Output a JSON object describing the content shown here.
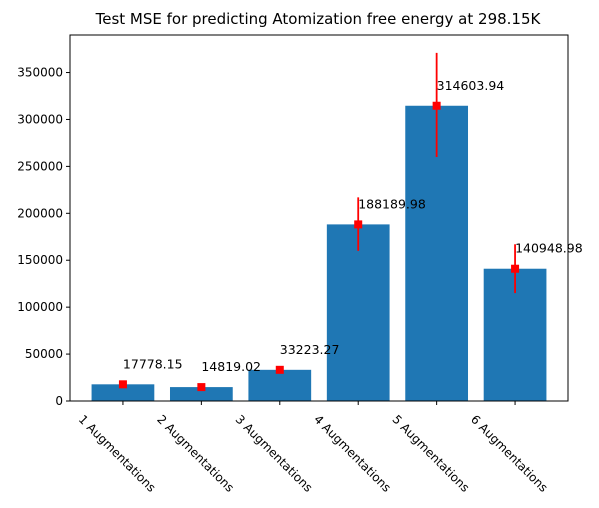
{
  "chart_data": {
    "type": "bar",
    "title": "Test MSE for predicting Atomization free energy at 298.15K",
    "xlabel": "",
    "ylabel": "",
    "categories": [
      "1 Augmentations",
      "2 Augmentations",
      "3 Augmentations",
      "4 Augmentations",
      "5 Augmentations",
      "6 Augmentations"
    ],
    "values": [
      17778.15,
      14819.02,
      33223.27,
      188189.98,
      314603.94,
      140948.98
    ],
    "value_labels": [
      "17778.15",
      "14819.02",
      "33223.27",
      "188189.98",
      "314603.94",
      "140948.98"
    ],
    "error_low": [
      15800,
      12900,
      30600,
      160000,
      260000,
      115000
    ],
    "error_high": [
      19600,
      16800,
      36000,
      217000,
      371000,
      167000
    ],
    "ylim": [
      0,
      390000
    ],
    "yticks": [
      0,
      50000,
      100000,
      150000,
      200000,
      250000,
      300000,
      350000
    ],
    "grid": false,
    "legend": "none",
    "colors": {
      "bar": "#1f77b4",
      "error": "#ff0000",
      "marker": "#ff0000"
    }
  }
}
